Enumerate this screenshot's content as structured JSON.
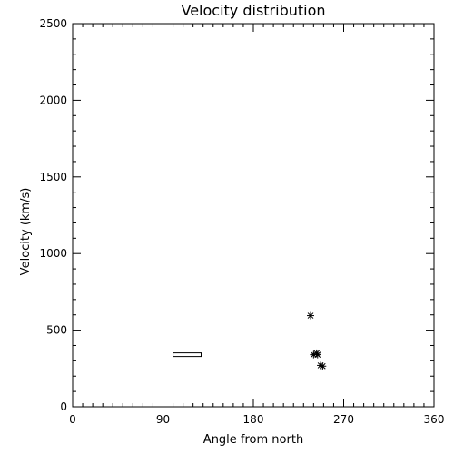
{
  "chart_data": {
    "type": "scatter",
    "title": "Velocity distribution",
    "xlabel": "Angle from north",
    "ylabel": "Velocity (km/s)",
    "xlim": [
      0,
      360
    ],
    "ylim": [
      0,
      2500
    ],
    "xticks": [
      0,
      90,
      180,
      270,
      360
    ],
    "yticks": [
      0,
      500,
      1000,
      1500,
      2000,
      2500
    ],
    "grid": false,
    "marker": "asterisk",
    "points": [
      {
        "x": 237,
        "y": 595
      },
      {
        "x": 240,
        "y": 340
      },
      {
        "x": 243,
        "y": 350
      },
      {
        "x": 244,
        "y": 340
      },
      {
        "x": 247,
        "y": 270
      },
      {
        "x": 249,
        "y": 265
      }
    ],
    "range_bar": {
      "x_start": 100,
      "x_end": 128,
      "y": 340
    }
  }
}
